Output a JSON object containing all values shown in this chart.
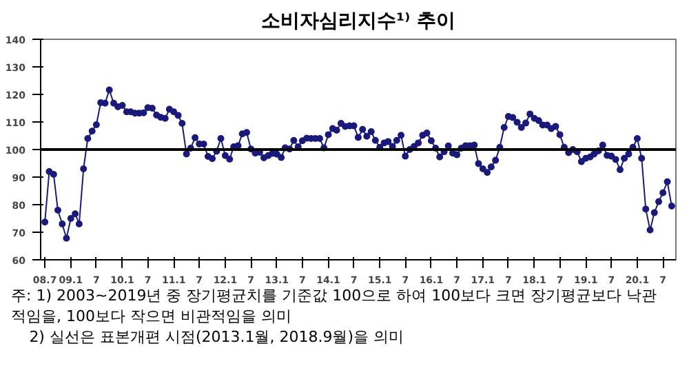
{
  "chart_data": {
    "type": "line",
    "title": "소비자심리지수¹⁾ 추이",
    "x": [
      "2008-07",
      "2008-08",
      "2008-09",
      "2008-10",
      "2008-11",
      "2008-12",
      "2009-01",
      "2009-02",
      "2009-03",
      "2009-04",
      "2009-05",
      "2009-06",
      "2009-07",
      "2009-08",
      "2009-09",
      "2009-10",
      "2009-11",
      "2009-12",
      "2010-01",
      "2010-02",
      "2010-03",
      "2010-04",
      "2010-05",
      "2010-06",
      "2010-07",
      "2010-08",
      "2010-09",
      "2010-10",
      "2010-11",
      "2010-12",
      "2011-01",
      "2011-02",
      "2011-03",
      "2011-04",
      "2011-05",
      "2011-06",
      "2011-07",
      "2011-08",
      "2011-09",
      "2011-10",
      "2011-11",
      "2011-12",
      "2012-01",
      "2012-02",
      "2012-03",
      "2012-04",
      "2012-05",
      "2012-06",
      "2012-07",
      "2012-08",
      "2012-09",
      "2012-10",
      "2012-11",
      "2012-12",
      "2013-01",
      "2013-02",
      "2013-03",
      "2013-04",
      "2013-05",
      "2013-06",
      "2013-07",
      "2013-08",
      "2013-09",
      "2013-10",
      "2013-11",
      "2013-12",
      "2014-01",
      "2014-02",
      "2014-03",
      "2014-04",
      "2014-05",
      "2014-06",
      "2014-07",
      "2014-08",
      "2014-09",
      "2014-10",
      "2014-11",
      "2014-12",
      "2015-01",
      "2015-02",
      "2015-03",
      "2015-04",
      "2015-05",
      "2015-06",
      "2015-07",
      "2015-08",
      "2015-09",
      "2015-10",
      "2015-11",
      "2015-12",
      "2016-01",
      "2016-02",
      "2016-03",
      "2016-04",
      "2016-05",
      "2016-06",
      "2016-07",
      "2016-08",
      "2016-09",
      "2016-10",
      "2016-11",
      "2016-12",
      "2017-01",
      "2017-02",
      "2017-03",
      "2017-04",
      "2017-05",
      "2017-06",
      "2017-07",
      "2017-08",
      "2017-09",
      "2017-10",
      "2017-11",
      "2017-12",
      "2018-01",
      "2018-02",
      "2018-03",
      "2018-04",
      "2018-05",
      "2018-06",
      "2018-07",
      "2018-08",
      "2018-09",
      "2018-10",
      "2018-11",
      "2018-12",
      "2019-01",
      "2019-02",
      "2019-03",
      "2019-04",
      "2019-05",
      "2019-06",
      "2019-07",
      "2019-08",
      "2019-09",
      "2019-10",
      "2019-11",
      "2019-12",
      "2020-01",
      "2020-02",
      "2020-03",
      "2020-04",
      "2020-05",
      "2020-06",
      "2020-07",
      "2020-08",
      "2020-09"
    ],
    "xlim": [
      "2008-06",
      "2020-10"
    ],
    "xticks": [
      {
        "value": "2008-07",
        "label": "08.7"
      },
      {
        "value": "2009-01",
        "label": "09.1"
      },
      {
        "value": "2009-07",
        "label": "7"
      },
      {
        "value": "2010-01",
        "label": "10.1"
      },
      {
        "value": "2010-07",
        "label": "7"
      },
      {
        "value": "2011-01",
        "label": "11.1"
      },
      {
        "value": "2011-07",
        "label": "7"
      },
      {
        "value": "2012-01",
        "label": "12.1"
      },
      {
        "value": "2012-07",
        "label": "7"
      },
      {
        "value": "2013-01",
        "label": "13.1"
      },
      {
        "value": "2013-07",
        "label": "7"
      },
      {
        "value": "2014-01",
        "label": "14.1"
      },
      {
        "value": "2014-07",
        "label": "7"
      },
      {
        "value": "2015-01",
        "label": "15.1"
      },
      {
        "value": "2015-07",
        "label": "7"
      },
      {
        "value": "2016-01",
        "label": "16.1"
      },
      {
        "value": "2016-07",
        "label": "7"
      },
      {
        "value": "2017-01",
        "label": "17.1"
      },
      {
        "value": "2017-07",
        "label": "7"
      },
      {
        "value": "2018-01",
        "label": "18.1"
      },
      {
        "value": "2018-07",
        "label": "7"
      },
      {
        "value": "2019-01",
        "label": "19.1"
      },
      {
        "value": "2019-07",
        "label": "7"
      },
      {
        "value": "2020-01",
        "label": "20.1"
      },
      {
        "value": "2020-07",
        "label": "7"
      }
    ],
    "ylim": [
      60,
      140
    ],
    "yticks": [
      60,
      70,
      80,
      90,
      100,
      110,
      120,
      130,
      140
    ],
    "grid": false,
    "marker": "circle",
    "line_style": "solid",
    "series": [
      {
        "color": "#1a1a7a",
        "values": [
          73.7,
          92,
          91,
          78,
          73,
          67.8,
          75,
          76.7,
          73,
          93,
          104,
          106.7,
          109,
          117,
          116.8,
          121.6,
          116.8,
          115.5,
          116,
          113.7,
          113.7,
          113.2,
          113.2,
          113.3,
          115.2,
          115,
          112.5,
          111.7,
          111.3,
          114.6,
          113.7,
          112.4,
          109.5,
          98.4,
          100.5,
          104.3,
          102,
          102,
          97.5,
          96.7,
          99.4,
          104,
          97.8,
          96.5,
          101,
          101.4,
          105.7,
          106.2,
          100.2,
          98.7,
          99,
          97,
          97.8,
          98.6,
          98.3,
          97.1,
          100.6,
          100.2,
          103.3,
          101,
          103.2,
          104.1,
          104,
          104,
          104,
          100.6,
          105.4,
          107.6,
          107,
          109.5,
          108.4,
          108.6,
          108.6,
          104.4,
          107.3,
          104.8,
          106.5,
          103.3,
          100.8,
          102.4,
          102.9,
          101.1,
          103.3,
          105.2,
          97.6,
          100,
          101.1,
          102.4,
          105.2,
          106,
          103.2,
          100.5,
          97.3,
          99.2,
          101.3,
          98.7,
          98.1,
          100.5,
          101.4,
          101.4,
          101.6,
          94.9,
          93,
          91.7,
          93.7,
          96.1,
          100.8,
          108,
          112,
          111.6,
          109.9,
          108,
          109.6,
          112.9,
          111.3,
          110.5,
          108.9,
          108.9,
          107.6,
          108.4,
          105.4,
          100.8,
          98.9,
          100,
          99.2,
          95.6,
          96.8,
          97.3,
          98.4,
          99.5,
          101.6,
          97.9,
          97.6,
          96.4,
          92.7,
          96.8,
          98.4,
          100.8,
          104,
          96.8,
          78.4,
          70.8,
          77.1,
          81.1,
          84.3,
          88.3,
          79.5
        ]
      }
    ],
    "ref_lines": [
      {
        "axis": "y",
        "value": 100,
        "color": "#000000"
      }
    ],
    "annotations": [
      "주: 1) 2003~2019년 중 장기평균치를 기준값 100으로 하여 100보다 크면 장기평균보다 낙관적임을, 100보다 작으면 비관적임을 의미",
      "2) 실선은 표본개편 시점(2013.1월, 2018.9월)을 의미"
    ]
  }
}
